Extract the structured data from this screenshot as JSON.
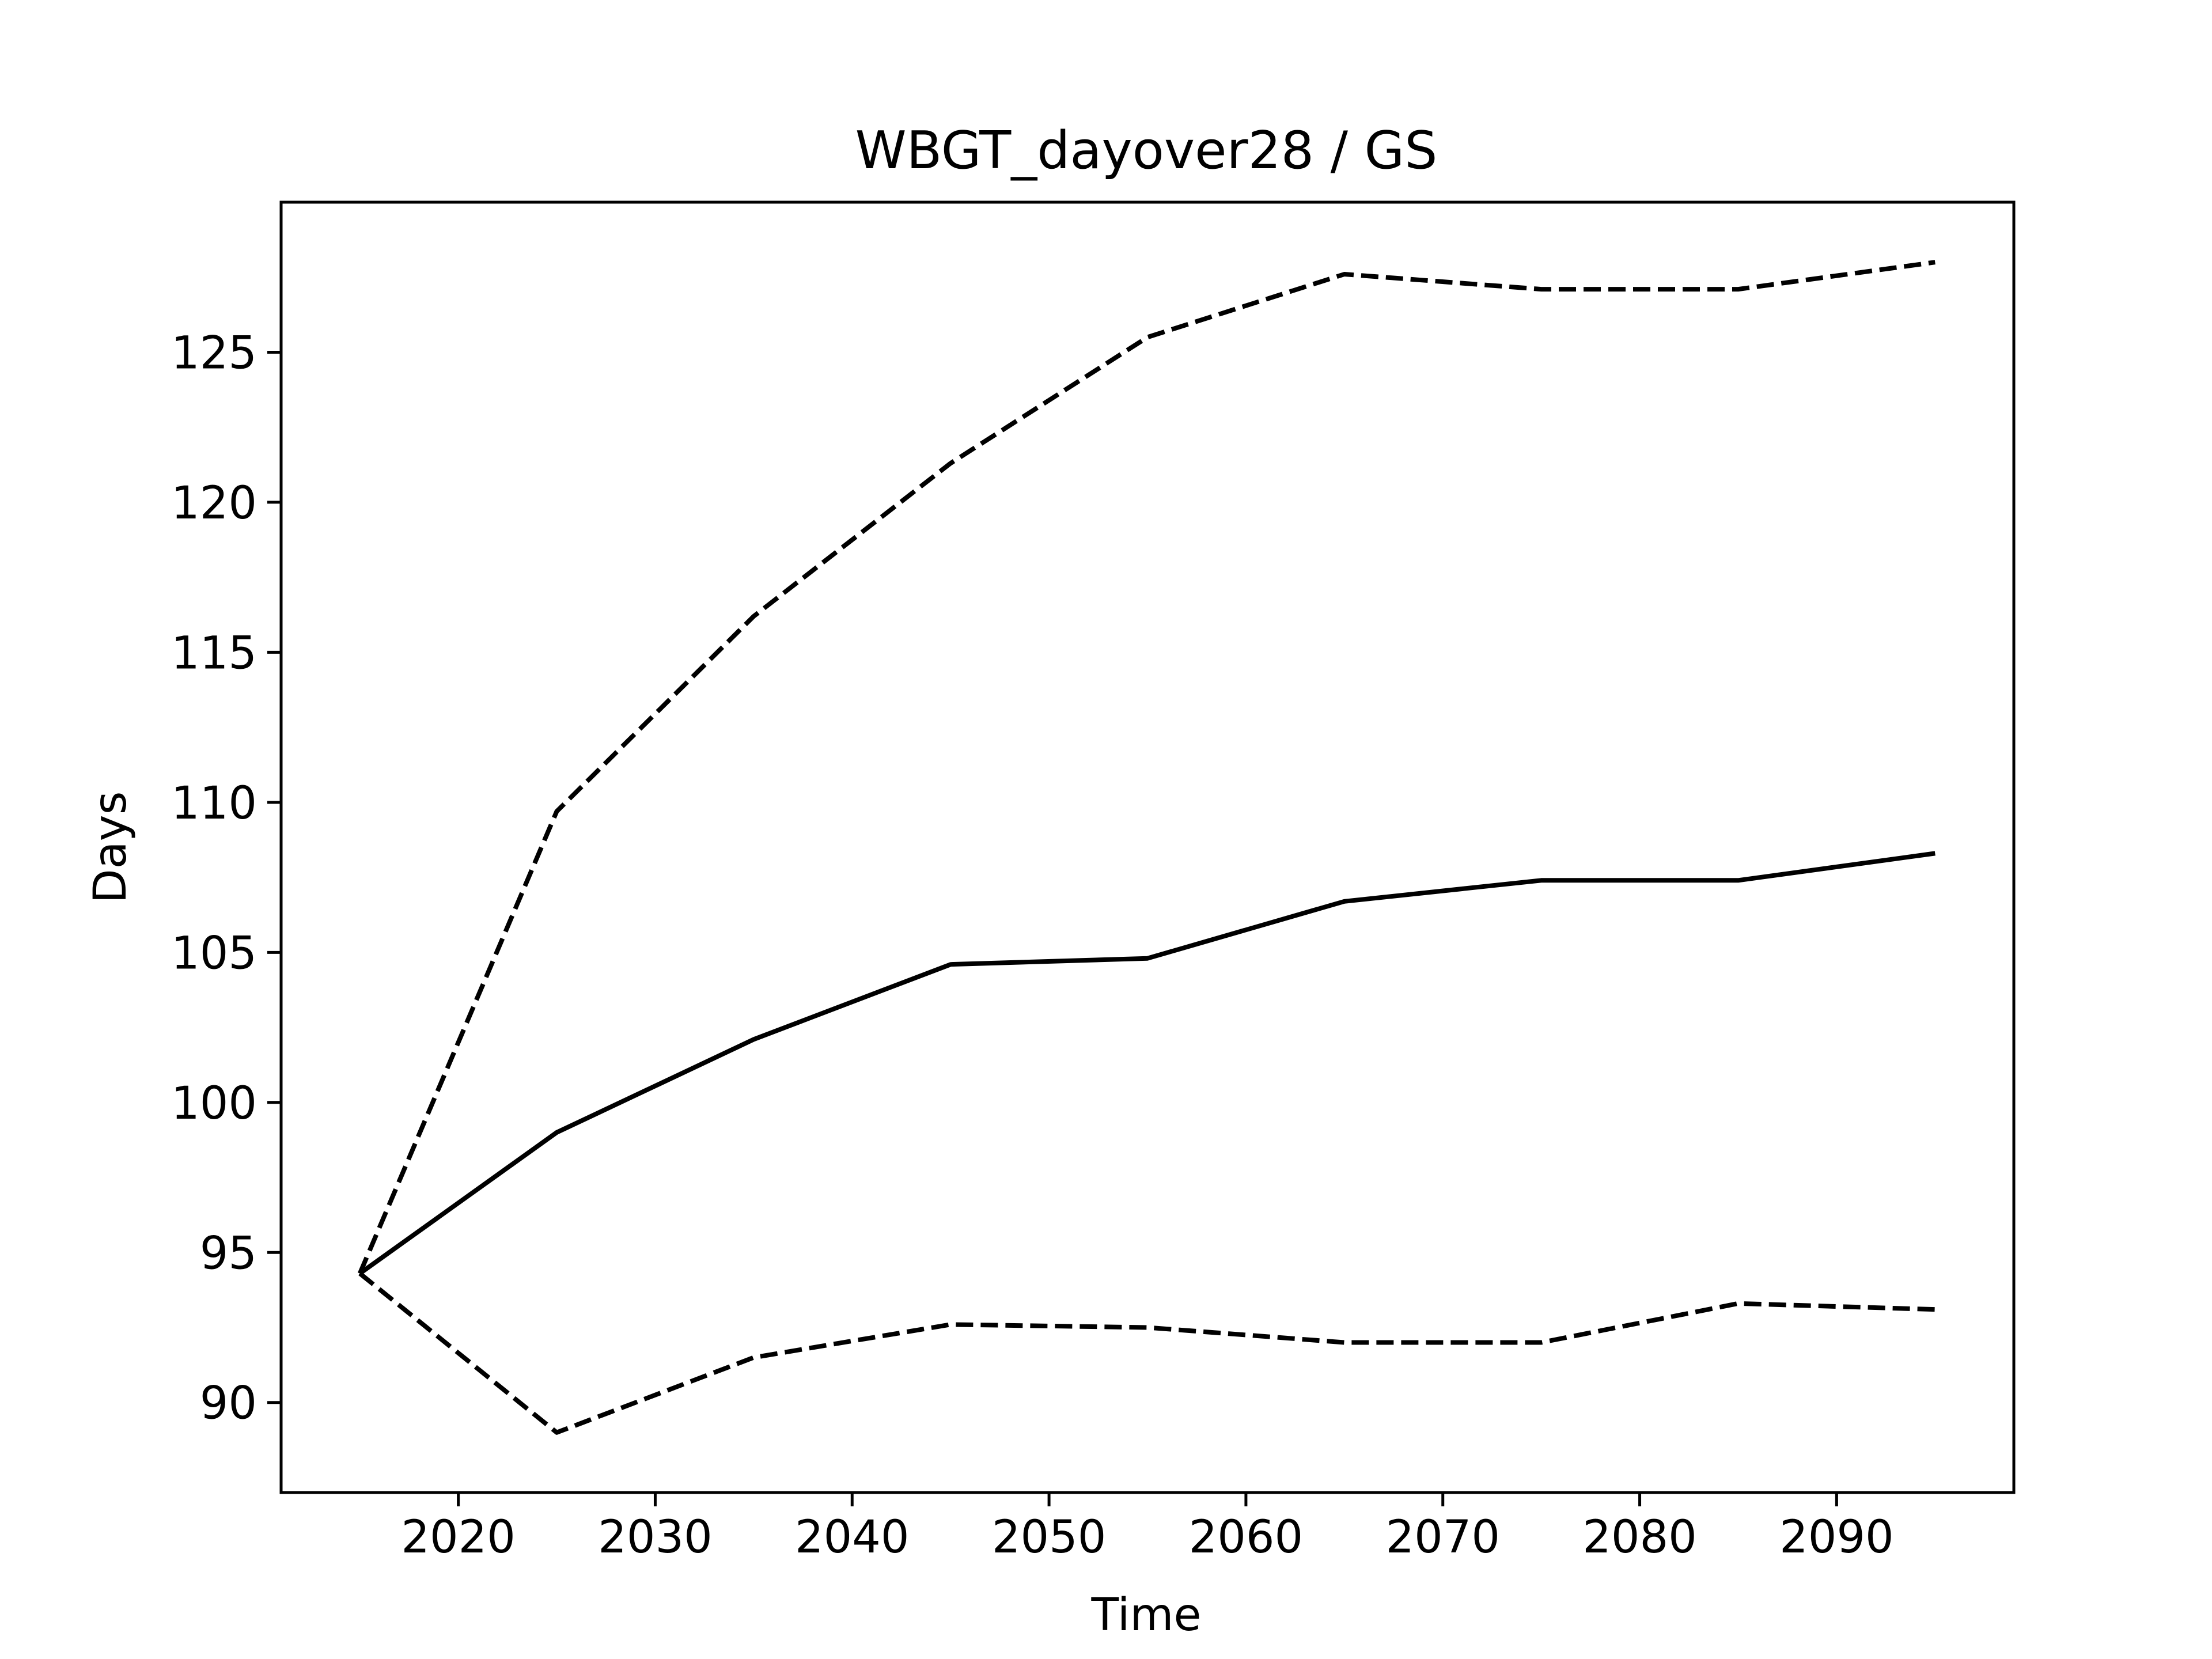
{
  "chart_data": {
    "type": "line",
    "title": "WBGT_dayover28 / GS",
    "xlabel": "Time",
    "ylabel": "Days",
    "xlim": [
      2011,
      2099
    ],
    "ylim": [
      87,
      130
    ],
    "xticks": [
      2020,
      2030,
      2040,
      2050,
      2060,
      2070,
      2080,
      2090
    ],
    "yticks": [
      90,
      95,
      100,
      105,
      110,
      115,
      120,
      125
    ],
    "grid": false,
    "x": [
      2015,
      2025,
      2035,
      2045,
      2055,
      2065,
      2075,
      2085,
      2095
    ],
    "series": [
      {
        "style": "dashed",
        "values": [
          94.3,
          109.7,
          116.2,
          121.3,
          125.5,
          127.6,
          127.1,
          127.1,
          128.0
        ]
      },
      {
        "style": "solid",
        "values": [
          94.3,
          99.0,
          102.1,
          104.6,
          104.8,
          106.7,
          107.4,
          107.4,
          108.3
        ]
      },
      {
        "style": "dashed",
        "values": [
          94.3,
          89.0,
          91.5,
          92.6,
          92.5,
          92.0,
          92.0,
          93.3,
          93.1
        ]
      }
    ]
  }
}
